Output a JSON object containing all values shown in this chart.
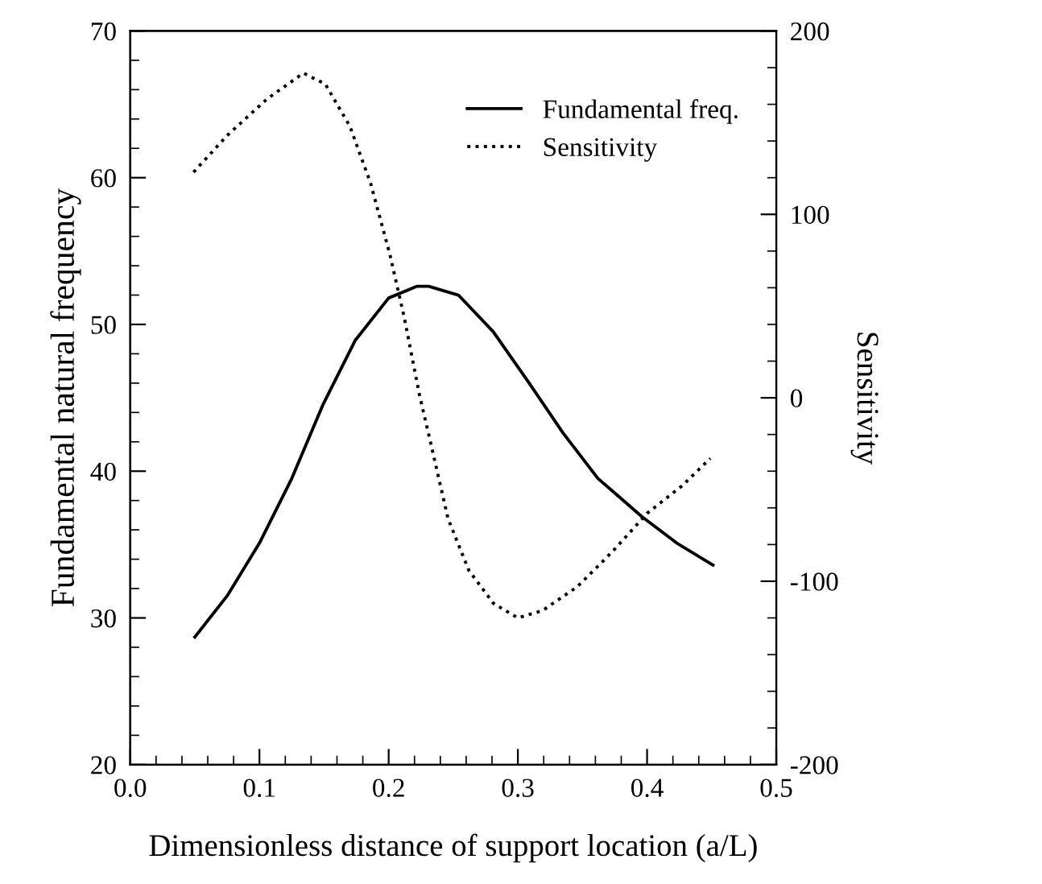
{
  "chart_data": {
    "type": "line",
    "xlabel": "Dimensionless distance of support location (a/L)",
    "ylabel": "Fundamental natural frequency",
    "y2label": "Sensitivity",
    "xlim": [
      0.0,
      0.5
    ],
    "xticks": [
      {
        "value": 0.0,
        "label": "0.0"
      },
      0.1,
      0.2,
      0.3,
      0.4,
      0.5
    ],
    "ylim": [
      20,
      70
    ],
    "yticks": [
      20,
      30,
      40,
      50,
      60,
      70
    ],
    "y2lim": [
      -200,
      200
    ],
    "y2ticks": [
      -200,
      -100,
      0,
      100,
      200
    ],
    "grid": false,
    "legend": "top right",
    "series": [
      {
        "name": "Fundamental freq.",
        "color": "#000000",
        "line_style": "solid",
        "axis": "y",
        "x": [
          0.05,
          0.075,
          0.1,
          0.125,
          0.149,
          0.174,
          0.2,
          0.222,
          0.231,
          0.254,
          0.281,
          0.308,
          0.335,
          0.362,
          0.396,
          0.423,
          0.451
        ],
        "values": [
          28.7,
          31.5,
          35.1,
          39.5,
          44.5,
          48.9,
          51.8,
          52.6,
          52.6,
          52.0,
          49.5,
          46.1,
          42.6,
          39.5,
          36.9,
          35.1,
          33.6
        ]
      },
      {
        "name": "Sensitivity",
        "color": "#000000",
        "line_style": "dotted",
        "axis": "y2",
        "x": [
          0.049,
          0.075,
          0.106,
          0.134,
          0.151,
          0.17,
          0.186,
          0.201,
          0.212,
          0.224,
          0.231,
          0.246,
          0.262,
          0.281,
          0.3,
          0.319,
          0.346,
          0.373,
          0.4,
          0.427,
          0.449
        ],
        "values": [
          123,
          143,
          163,
          177,
          171,
          148,
          117,
          78,
          44,
          1,
          -20,
          -66,
          -94,
          -112,
          -120,
          -116,
          -103,
          -84,
          -63,
          -48,
          -33
        ]
      }
    ]
  }
}
